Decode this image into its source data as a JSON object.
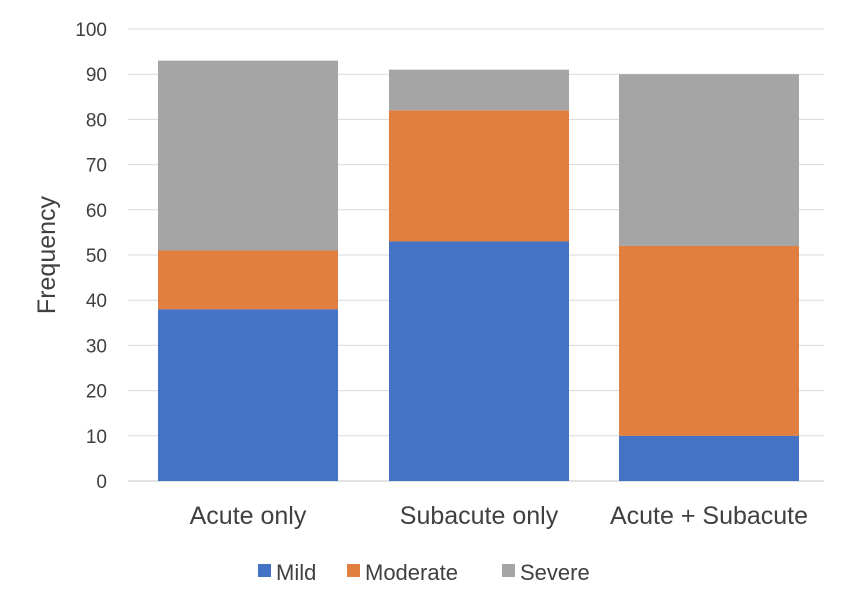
{
  "chart_data": {
    "type": "bar",
    "stacked": true,
    "categories": [
      "Acute only",
      "Subacute only",
      "Acute + Subacute"
    ],
    "series": [
      {
        "name": "Mild",
        "values": [
          38,
          53,
          10
        ],
        "color": "#4472c4"
      },
      {
        "name": "Moderate",
        "values": [
          13,
          29,
          42
        ],
        "color": "#e07f3f"
      },
      {
        "name": "Severe",
        "values": [
          42,
          9,
          38
        ],
        "color": "#a5a5a5"
      }
    ],
    "ylabel": "Frequency",
    "ylim": [
      0,
      100
    ],
    "yticks": [
      0,
      10,
      20,
      30,
      40,
      50,
      60,
      70,
      80,
      90,
      100
    ],
    "grid": true,
    "legend": "bottom"
  }
}
